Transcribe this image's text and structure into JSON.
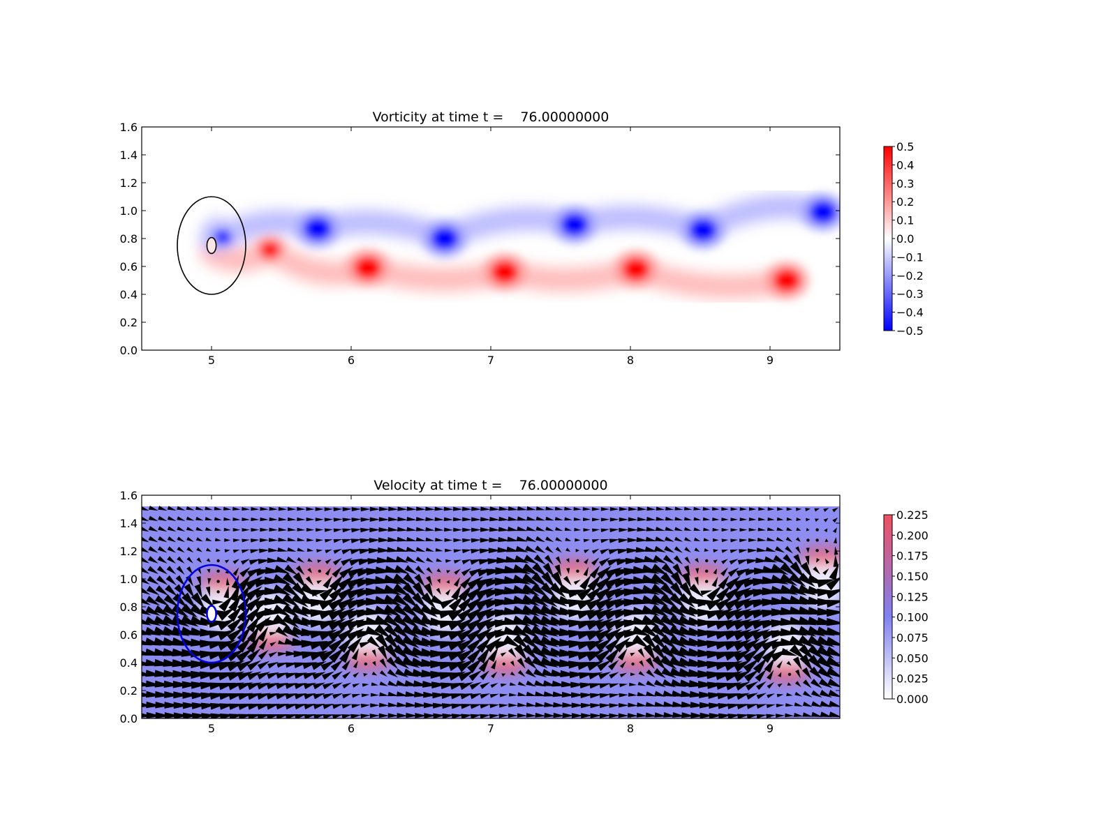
{
  "chart_data": [
    {
      "type": "heatmap",
      "title": "Vorticity at time t =    76.00000000",
      "xlabel": "",
      "ylabel": "",
      "xlim": [
        4.5,
        9.5
      ],
      "ylim": [
        0.0,
        1.6
      ],
      "xticks": [
        "5",
        "6",
        "7",
        "8",
        "9"
      ],
      "yticks": [
        "0.0",
        "0.2",
        "0.4",
        "0.6",
        "0.8",
        "1.0",
        "1.2",
        "1.4",
        "1.6"
      ],
      "colormap": {
        "low": "#0000ff",
        "mid": "#ffffff",
        "high": "#ff0000",
        "range": [
          -0.5,
          0.5
        ]
      },
      "colorbar_ticks": [
        "0.5",
        "0.4",
        "0.3",
        "0.2",
        "0.1",
        "0.0",
        "−0.1",
        "−0.2",
        "−0.3",
        "−0.4",
        "−0.5"
      ],
      "cylinder": {
        "x": 5.0,
        "y": 0.75,
        "r": 0.06
      },
      "region_circle": {
        "x": 5.0,
        "y": 0.75,
        "r": 0.35,
        "color": "#000000"
      },
      "vortices": [
        {
          "x": 5.08,
          "y": 0.81,
          "sign": -1,
          "strength": 0.5
        },
        {
          "x": 5.42,
          "y": 0.72,
          "sign": 1,
          "strength": 0.5
        },
        {
          "x": 5.76,
          "y": 0.87,
          "sign": -1,
          "strength": 0.5
        },
        {
          "x": 6.12,
          "y": 0.59,
          "sign": 1,
          "strength": 0.5
        },
        {
          "x": 6.67,
          "y": 0.8,
          "sign": -1,
          "strength": 0.5
        },
        {
          "x": 7.1,
          "y": 0.56,
          "sign": 1,
          "strength": 0.5
        },
        {
          "x": 7.6,
          "y": 0.9,
          "sign": -1,
          "strength": 0.5
        },
        {
          "x": 8.04,
          "y": 0.58,
          "sign": 1,
          "strength": 0.5
        },
        {
          "x": 8.52,
          "y": 0.86,
          "sign": -1,
          "strength": 0.5
        },
        {
          "x": 9.12,
          "y": 0.5,
          "sign": 1,
          "strength": 0.5
        },
        {
          "x": 9.38,
          "y": 0.99,
          "sign": -1,
          "strength": 0.5
        }
      ]
    },
    {
      "type": "heatmap",
      "title": "Velocity at time t =    76.00000000",
      "xlabel": "",
      "ylabel": "",
      "xlim": [
        4.5,
        9.5
      ],
      "ylim": [
        0.0,
        1.6
      ],
      "xticks": [
        "5",
        "6",
        "7",
        "8",
        "9"
      ],
      "yticks": [
        "0.0",
        "0.2",
        "0.4",
        "0.6",
        "0.8",
        "1.0",
        "1.2",
        "1.4",
        "1.6"
      ],
      "colormap": {
        "low": "#ffffff",
        "mid": "#8080f0",
        "high": "#f05060",
        "range": [
          0.0,
          0.225
        ]
      },
      "colorbar_ticks": [
        "0.225",
        "0.200",
        "0.175",
        "0.150",
        "0.125",
        "0.100",
        "0.075",
        "0.050",
        "0.025",
        "0.000"
      ],
      "field_top": 1.52,
      "free_stream_speed": 0.1,
      "arrow_grid": {
        "x_start": 4.52,
        "x_step": 0.066,
        "y_start": 0.02,
        "y_step": 0.074
      },
      "cylinder": {
        "x": 5.0,
        "y": 0.75,
        "r": 0.06,
        "color": "#0000dd"
      },
      "region_circle": {
        "x": 5.0,
        "y": 0.75,
        "r": 0.35,
        "color": "#0000dd"
      }
    }
  ]
}
